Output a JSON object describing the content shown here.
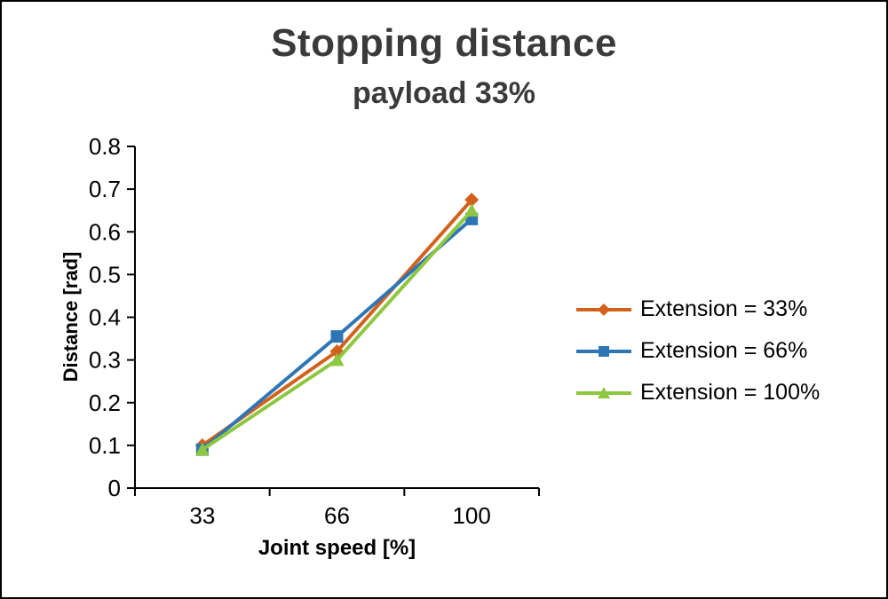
{
  "chart_data": {
    "type": "line",
    "title": "Stopping distance",
    "subtitle": "payload 33%",
    "xlabel": "Joint speed [%]",
    "ylabel": "Distance [rad]",
    "categories": [
      "33",
      "66",
      "100"
    ],
    "ylim": [
      0,
      0.8
    ],
    "yticks": [
      "0",
      "0.1",
      "0.2",
      "0.3",
      "0.4",
      "0.5",
      "0.6",
      "0.7",
      "0.8"
    ],
    "grid": false,
    "legend_position": "right",
    "series": [
      {
        "name": "Extension = 33%",
        "color": "#d2611c",
        "marker": "diamond",
        "values": [
          0.1,
          0.32,
          0.675
        ]
      },
      {
        "name": "Extension = 66%",
        "color": "#2e75b6",
        "marker": "square",
        "values": [
          0.09,
          0.355,
          0.63
        ]
      },
      {
        "name": "Extension = 100%",
        "color": "#8dc63f",
        "marker": "triangle",
        "values": [
          0.09,
          0.3,
          0.65
        ]
      }
    ]
  }
}
